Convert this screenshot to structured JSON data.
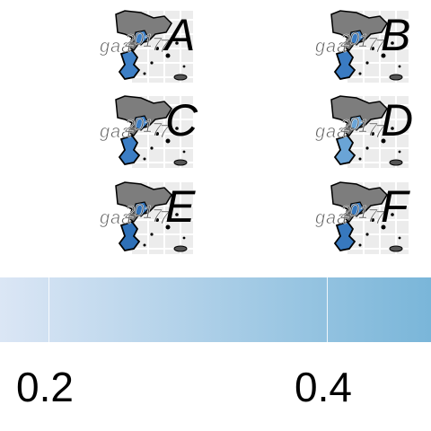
{
  "panels": [
    {
      "label": "A",
      "fill": "#3d7fc6"
    },
    {
      "label": "B",
      "fill": "#3a7bc2"
    },
    {
      "label": "C",
      "fill": "#3b7dc4"
    },
    {
      "label": "D",
      "fill": "#6aa4d6"
    },
    {
      "label": "E",
      "fill": "#2e70b8"
    },
    {
      "label": "F",
      "fill": "#3778be"
    }
  ],
  "legend": {
    "type": "colorbar",
    "color_low": "#dbe6f5",
    "color_high": "#7ab6d9",
    "ticks": [
      {
        "label": "0.2",
        "value": 0.2
      },
      {
        "label": "0.4",
        "value": 0.4
      }
    ]
  }
}
